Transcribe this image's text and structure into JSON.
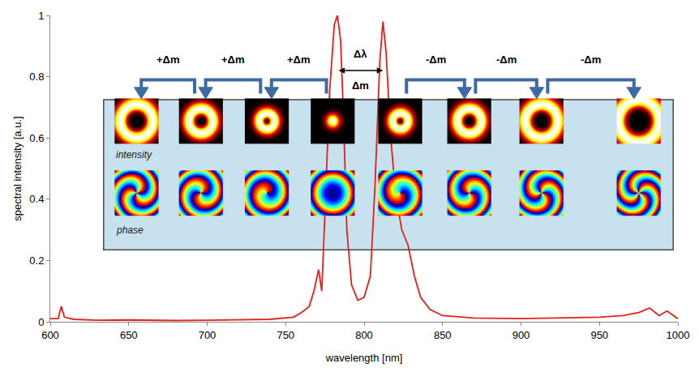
{
  "chart_data": {
    "type": "line",
    "x_label": "wavelength [nm]",
    "y_label": "spectral intensity [a.u.]",
    "x": [
      600,
      605,
      607,
      609,
      615,
      630,
      650,
      680,
      700,
      720,
      740,
      755,
      760,
      765,
      768,
      771,
      773,
      775,
      778,
      781,
      783,
      785,
      787,
      789,
      792,
      796,
      800,
      804,
      807,
      810,
      812,
      814,
      817,
      820,
      824,
      828,
      832,
      836,
      842,
      850,
      870,
      900,
      930,
      950,
      965,
      975,
      982,
      988,
      993,
      1000
    ],
    "values": [
      0.01,
      0.01,
      0.05,
      0.015,
      0.008,
      0.005,
      0.006,
      0.004,
      0.005,
      0.006,
      0.008,
      0.015,
      0.03,
      0.05,
      0.1,
      0.17,
      0.1,
      0.35,
      0.75,
      0.97,
      1.0,
      0.92,
      0.65,
      0.3,
      0.12,
      0.07,
      0.08,
      0.15,
      0.45,
      0.85,
      0.98,
      0.88,
      0.6,
      0.42,
      0.3,
      0.25,
      0.15,
      0.08,
      0.04,
      0.02,
      0.012,
      0.01,
      0.012,
      0.015,
      0.02,
      0.03,
      0.045,
      0.02,
      0.035,
      0.01
    ],
    "color": "#e3201b",
    "xlim": [
      600,
      1000
    ],
    "xticks": [
      600,
      650,
      700,
      750,
      800,
      850,
      900,
      950,
      1000
    ],
    "ylim": [
      0,
      1
    ],
    "yticks": [
      0,
      0.2,
      0.4,
      0.6,
      0.8,
      1
    ],
    "grid": false,
    "annotations": [
      "+Δm",
      "+Δm",
      "+Δm",
      "Δλ",
      "Δm",
      "-Δm",
      "-Δm",
      "-Δm"
    ],
    "inset_labels": [
      "intensity",
      "phase"
    ]
  }
}
